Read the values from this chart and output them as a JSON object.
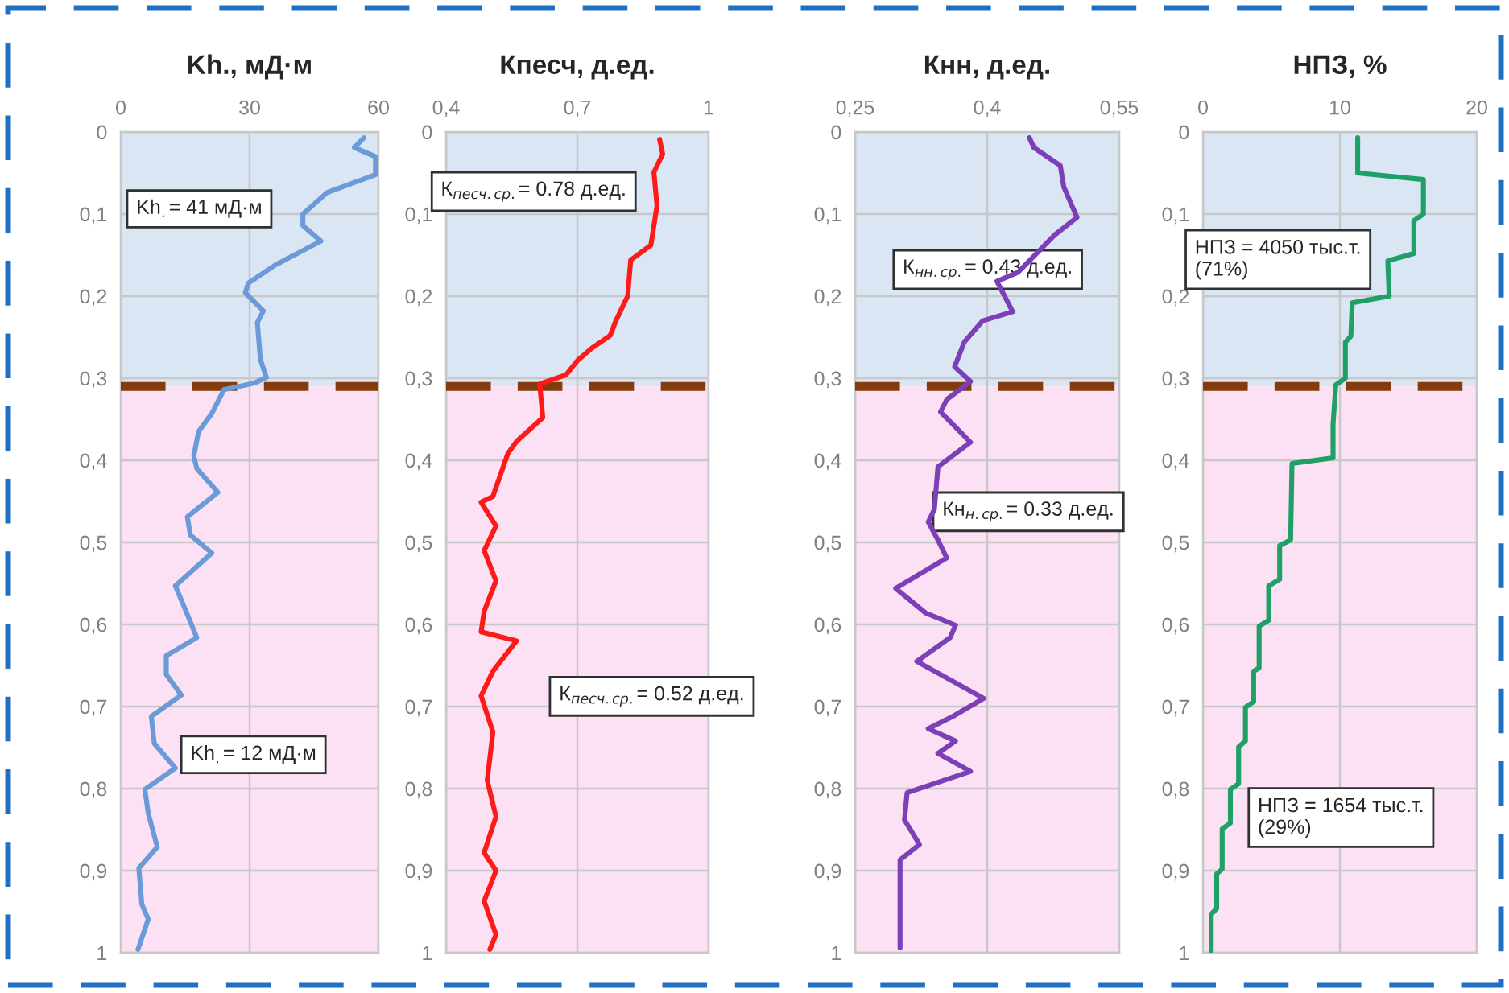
{
  "chart_data": [
    {
      "type": "line",
      "title": "Kh., мД·м",
      "xlim": [
        0,
        60
      ],
      "xticks": [
        0,
        30,
        60
      ],
      "ylim": [
        1,
        0
      ],
      "yticks": [
        0,
        {
          "value": 0.1,
          "label": "0,1"
        },
        {
          "value": 0.2,
          "label": "0,2"
        },
        {
          "value": 0.3,
          "label": "0,3"
        },
        {
          "value": 0.4,
          "label": "0,4"
        },
        {
          "value": 0.5,
          "label": "0,5"
        },
        {
          "value": 0.6,
          "label": "0,6"
        },
        {
          "value": 0.7,
          "label": "0,7"
        },
        {
          "value": 0.8,
          "label": "0,8"
        },
        {
          "value": 0.9,
          "label": "0,9"
        },
        1
      ],
      "grid": true,
      "series": [
        {
          "color": "#6a9ad8",
          "x": [
            56.6,
            54.4,
            59.3,
            59.3,
            48,
            42.4,
            42.4,
            46.6,
            36,
            29.7,
            29,
            33.2,
            31.8,
            32.5,
            33.9,
            31.1,
            24,
            21.2,
            18.1,
            17,
            17.7,
            22.6,
            15.5,
            16.2,
            21.2,
            12.7,
            14.8,
            17.7,
            10.6,
            10.6,
            14.1,
            7.1,
            7.8,
            12.7,
            5.6,
            6.4,
            8.5,
            4.2,
            4.9,
            6.4,
            4
          ],
          "values": [
            0.007,
            0.019,
            0.03,
            0.052,
            0.074,
            0.1,
            0.114,
            0.133,
            0.162,
            0.184,
            0.196,
            0.218,
            0.232,
            0.277,
            0.299,
            0.306,
            0.314,
            0.343,
            0.365,
            0.395,
            0.41,
            0.439,
            0.469,
            0.491,
            0.513,
            0.553,
            0.579,
            0.616,
            0.638,
            0.661,
            0.686,
            0.712,
            0.745,
            0.775,
            0.801,
            0.83,
            0.871,
            0.897,
            0.941,
            0.959,
            0.996
          ]
        }
      ],
      "bands": [
        {
          "axis": "y",
          "from": 0,
          "to": 0.31,
          "color": "#dae6f3"
        },
        {
          "axis": "y",
          "from": 0.31,
          "to": 1,
          "color": "#fce0f3"
        }
      ],
      "ref_lines": [
        {
          "axis": "y",
          "value": 0.31,
          "color": "#843c0c",
          "line_style": "dashed"
        }
      ],
      "annotations": [
        "Kh$_{.}$= 41 мД·м",
        "Kh$_{.}$= 12 мД·м"
      ]
    },
    {
      "type": "line",
      "title": "Кпесч, д.ед.",
      "xlim": [
        0.4,
        1
      ],
      "xticks": [
        {
          "value": 0.4,
          "label": "0,4"
        },
        {
          "value": 0.7,
          "label": "0,7"
        },
        1
      ],
      "ylim": [
        1,
        0
      ],
      "yticks": [
        0,
        {
          "value": 0.1,
          "label": "0,1"
        },
        {
          "value": 0.2,
          "label": "0,2"
        },
        {
          "value": 0.3,
          "label": "0,3"
        },
        {
          "value": 0.4,
          "label": "0,4"
        },
        {
          "value": 0.5,
          "label": "0,5"
        },
        {
          "value": 0.6,
          "label": "0,6"
        },
        {
          "value": 0.7,
          "label": "0,7"
        },
        {
          "value": 0.8,
          "label": "0,8"
        },
        {
          "value": 0.9,
          "label": "0,9"
        },
        1
      ],
      "grid": true,
      "series": [
        {
          "color": "#ff1a1a",
          "x": [
            0.888,
            0.895,
            0.875,
            0.882,
            0.868,
            0.822,
            0.815,
            0.788,
            0.775,
            0.734,
            0.701,
            0.674,
            0.614,
            0.621,
            0.561,
            0.541,
            0.507,
            0.48,
            0.514,
            0.487,
            0.514,
            0.487,
            0.48,
            0.561,
            0.507,
            0.48,
            0.507,
            0.494,
            0.514,
            0.487,
            0.514,
            0.487,
            0.514,
            0.5
          ],
          "values": [
            0.009,
            0.027,
            0.049,
            0.09,
            0.138,
            0.156,
            0.2,
            0.23,
            0.248,
            0.263,
            0.278,
            0.296,
            0.307,
            0.348,
            0.377,
            0.392,
            0.444,
            0.451,
            0.48,
            0.51,
            0.547,
            0.584,
            0.609,
            0.62,
            0.657,
            0.687,
            0.731,
            0.79,
            0.834,
            0.878,
            0.9,
            0.937,
            0.978,
            0.996
          ]
        }
      ],
      "bands": [
        {
          "axis": "y",
          "from": 0,
          "to": 0.31,
          "color": "#dae6f3"
        },
        {
          "axis": "y",
          "from": 0.31,
          "to": 1,
          "color": "#fce0f3"
        }
      ],
      "ref_lines": [
        {
          "axis": "y",
          "value": 0.31,
          "color": "#843c0c",
          "line_style": "dashed"
        }
      ],
      "annotations": [
        "К$_{песч.ср.}$= 0.78 д.ед.",
        "К$_{песч.ср.}$= 0.52 д.ед."
      ]
    },
    {
      "type": "line",
      "title": "Кнн, д.ед.",
      "xlim": [
        0.25,
        0.55
      ],
      "xticks": [
        {
          "value": 0.25,
          "label": "0,25"
        },
        {
          "value": 0.4,
          "label": "0,4"
        },
        {
          "value": 0.55,
          "label": "0,55"
        }
      ],
      "ylim": [
        1,
        0
      ],
      "yticks": [
        0,
        {
          "value": 0.1,
          "label": "0,1"
        },
        {
          "value": 0.2,
          "label": "0,2"
        },
        {
          "value": 0.3,
          "label": "0,3"
        },
        {
          "value": 0.4,
          "label": "0,4"
        },
        {
          "value": 0.5,
          "label": "0,5"
        },
        {
          "value": 0.6,
          "label": "0,6"
        },
        {
          "value": 0.7,
          "label": "0,7"
        },
        {
          "value": 0.8,
          "label": "0,8"
        },
        {
          "value": 0.9,
          "label": "0,9"
        },
        1
      ],
      "grid": true,
      "series": [
        {
          "color": "#7d3fb8",
          "x": [
            0.448,
            0.453,
            0.483,
            0.487,
            0.502,
            0.476,
            0.435,
            0.411,
            0.429,
            0.395,
            0.374,
            0.363,
            0.381,
            0.354,
            0.347,
            0.381,
            0.344,
            0.34,
            0.333,
            0.344,
            0.354,
            0.296,
            0.33,
            0.364,
            0.358,
            0.32,
            0.396,
            0.361,
            0.333,
            0.364,
            0.344,
            0.381,
            0.309,
            0.306,
            0.323,
            0.301,
            0.301
          ],
          "values": [
            0.007,
            0.019,
            0.041,
            0.067,
            0.104,
            0.126,
            0.171,
            0.182,
            0.219,
            0.23,
            0.256,
            0.286,
            0.304,
            0.326,
            0.341,
            0.378,
            0.408,
            0.46,
            0.475,
            0.497,
            0.519,
            0.556,
            0.586,
            0.601,
            0.616,
            0.645,
            0.69,
            0.712,
            0.727,
            0.742,
            0.757,
            0.779,
            0.805,
            0.838,
            0.868,
            0.887,
            0.994
          ]
        }
      ],
      "bands": [
        {
          "axis": "y",
          "from": 0,
          "to": 0.31,
          "color": "#dae6f3"
        },
        {
          "axis": "y",
          "from": 0.31,
          "to": 1,
          "color": "#fce0f3"
        }
      ],
      "ref_lines": [
        {
          "axis": "y",
          "value": 0.31,
          "color": "#843c0c",
          "line_style": "dashed"
        }
      ],
      "annotations": [
        "К$_{нн.ср.}$= 0.43 д.ед.",
        "Кн$_{н.ср.}$= 0.33 д.ед."
      ]
    },
    {
      "type": "line",
      "title": "НПЗ, %",
      "xlim": [
        0,
        20
      ],
      "xticks": [
        0,
        10,
        20
      ],
      "ylim": [
        1,
        0
      ],
      "yticks": [
        0,
        {
          "value": 0.1,
          "label": "0,1"
        },
        {
          "value": 0.2,
          "label": "0,2"
        },
        {
          "value": 0.3,
          "label": "0,3"
        },
        {
          "value": 0.4,
          "label": "0,4"
        },
        {
          "value": 0.5,
          "label": "0,5"
        },
        {
          "value": 0.6,
          "label": "0,6"
        },
        {
          "value": 0.7,
          "label": "0,7"
        },
        {
          "value": 0.8,
          "label": "0,8"
        },
        {
          "value": 0.9,
          "label": "0,9"
        },
        1
      ],
      "grid": true,
      "series": [
        {
          "color": "#1fa066",
          "x": [
            11.3,
            11.3,
            16.1,
            16.1,
            15.4,
            15.4,
            13.5,
            13.6,
            10.9,
            10.8,
            10.4,
            10.4,
            9.7,
            9.5,
            9.5,
            6.5,
            6.4,
            5.6,
            5.6,
            4.8,
            4.8,
            4.1,
            4.1,
            3.7,
            3.7,
            3.1,
            3.1,
            2.6,
            2.6,
            2.0,
            2.0,
            1.4,
            1.4,
            1.0,
            1.0,
            0.6,
            0.6
          ],
          "values": [
            0.007,
            0.05,
            0.058,
            0.1,
            0.108,
            0.148,
            0.157,
            0.2,
            0.208,
            0.249,
            0.256,
            0.3,
            0.308,
            0.356,
            0.397,
            0.404,
            0.497,
            0.504,
            0.545,
            0.553,
            0.595,
            0.602,
            0.653,
            0.657,
            0.694,
            0.701,
            0.742,
            0.749,
            0.794,
            0.801,
            0.842,
            0.849,
            0.898,
            0.904,
            0.946,
            0.953,
            0.998
          ]
        }
      ],
      "bands": [
        {
          "axis": "y",
          "from": 0,
          "to": 0.31,
          "color": "#dae6f3"
        },
        {
          "axis": "y",
          "from": 0.31,
          "to": 1,
          "color": "#fce0f3"
        }
      ],
      "ref_lines": [
        {
          "axis": "y",
          "value": 0.31,
          "color": "#843c0c",
          "line_style": "dashed"
        }
      ],
      "annotations": [
        "НПЗ = 4050 тыс.т.\n(71%)",
        "НПЗ = 1654 тыс.т.\n(29%)"
      ]
    }
  ]
}
